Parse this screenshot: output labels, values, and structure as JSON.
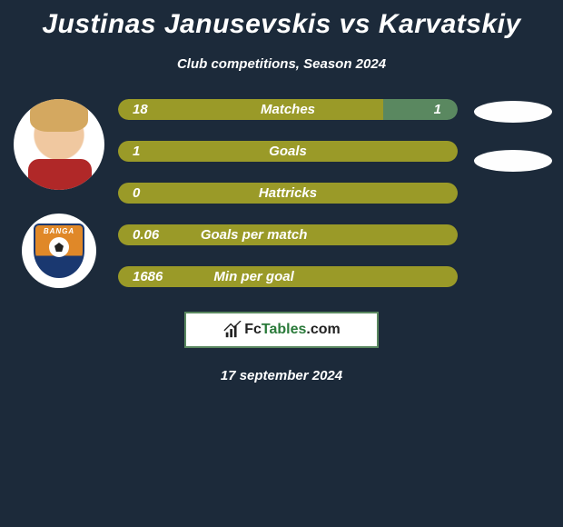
{
  "title": "Justinas Janusevskis vs Karvatskiy",
  "subtitle": "Club competitions, Season 2024",
  "colors": {
    "background": "#1c2a3a",
    "bar_primary": "#9a9a28",
    "bar_secondary": "#5a8860",
    "border_green": "#5a8860",
    "text": "#ffffff",
    "ellipse": "#fefefe"
  },
  "player_badge": "BANGA",
  "rows": [
    {
      "label": "Matches",
      "left": "18",
      "right": "1",
      "left_pct": 78,
      "right_pct": 22,
      "split": true,
      "ellipse": true
    },
    {
      "label": "Goals",
      "left": "1",
      "right": "",
      "left_pct": 100,
      "right_pct": 0,
      "split": false,
      "ellipse": true
    },
    {
      "label": "Hattricks",
      "left": "0",
      "right": "",
      "left_pct": 100,
      "right_pct": 0,
      "split": false,
      "ellipse": false
    },
    {
      "label": "Goals per match",
      "left": "0.06",
      "right": "",
      "left_pct": 100,
      "right_pct": 0,
      "split": false,
      "ellipse": false
    },
    {
      "label": "Min per goal",
      "left": "1686",
      "right": "",
      "left_pct": 100,
      "right_pct": 0,
      "split": false,
      "ellipse": false
    }
  ],
  "footer_site_pre": "Fc",
  "footer_site_mid": "Tables",
  "footer_site_suf": ".com",
  "date": "17 september 2024"
}
